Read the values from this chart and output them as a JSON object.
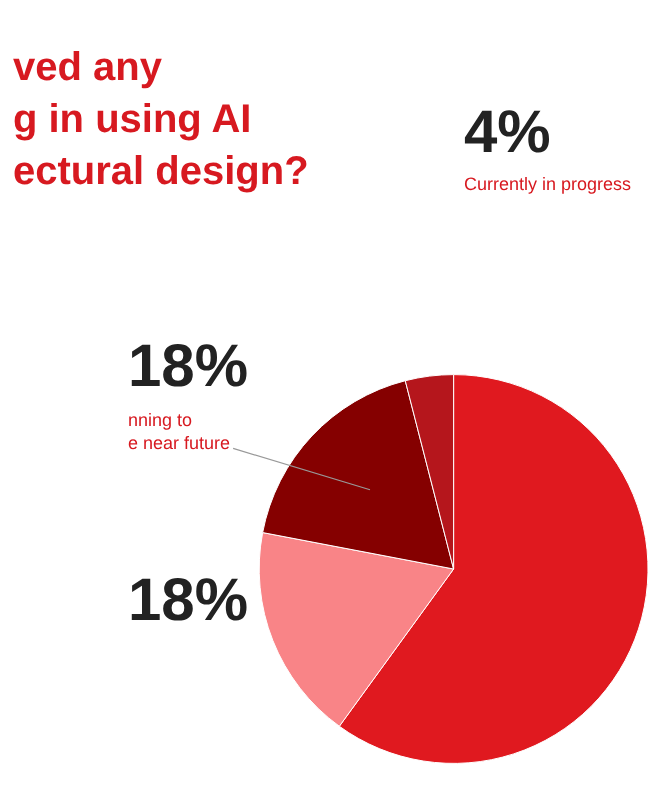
{
  "chart_data": {
    "type": "pie",
    "title": "ved any\ng in using AI\nectural design?",
    "categories": [
      null,
      null,
      "nning to\ne near future",
      "Currently in progress"
    ],
    "values": [
      60,
      18,
      18,
      4
    ],
    "colors": [
      "#e0191f",
      "#f98487",
      "#850000",
      "#b5161c"
    ],
    "value_labels": [
      null,
      "18%",
      "18%",
      "4%"
    ],
    "legend": false
  }
}
